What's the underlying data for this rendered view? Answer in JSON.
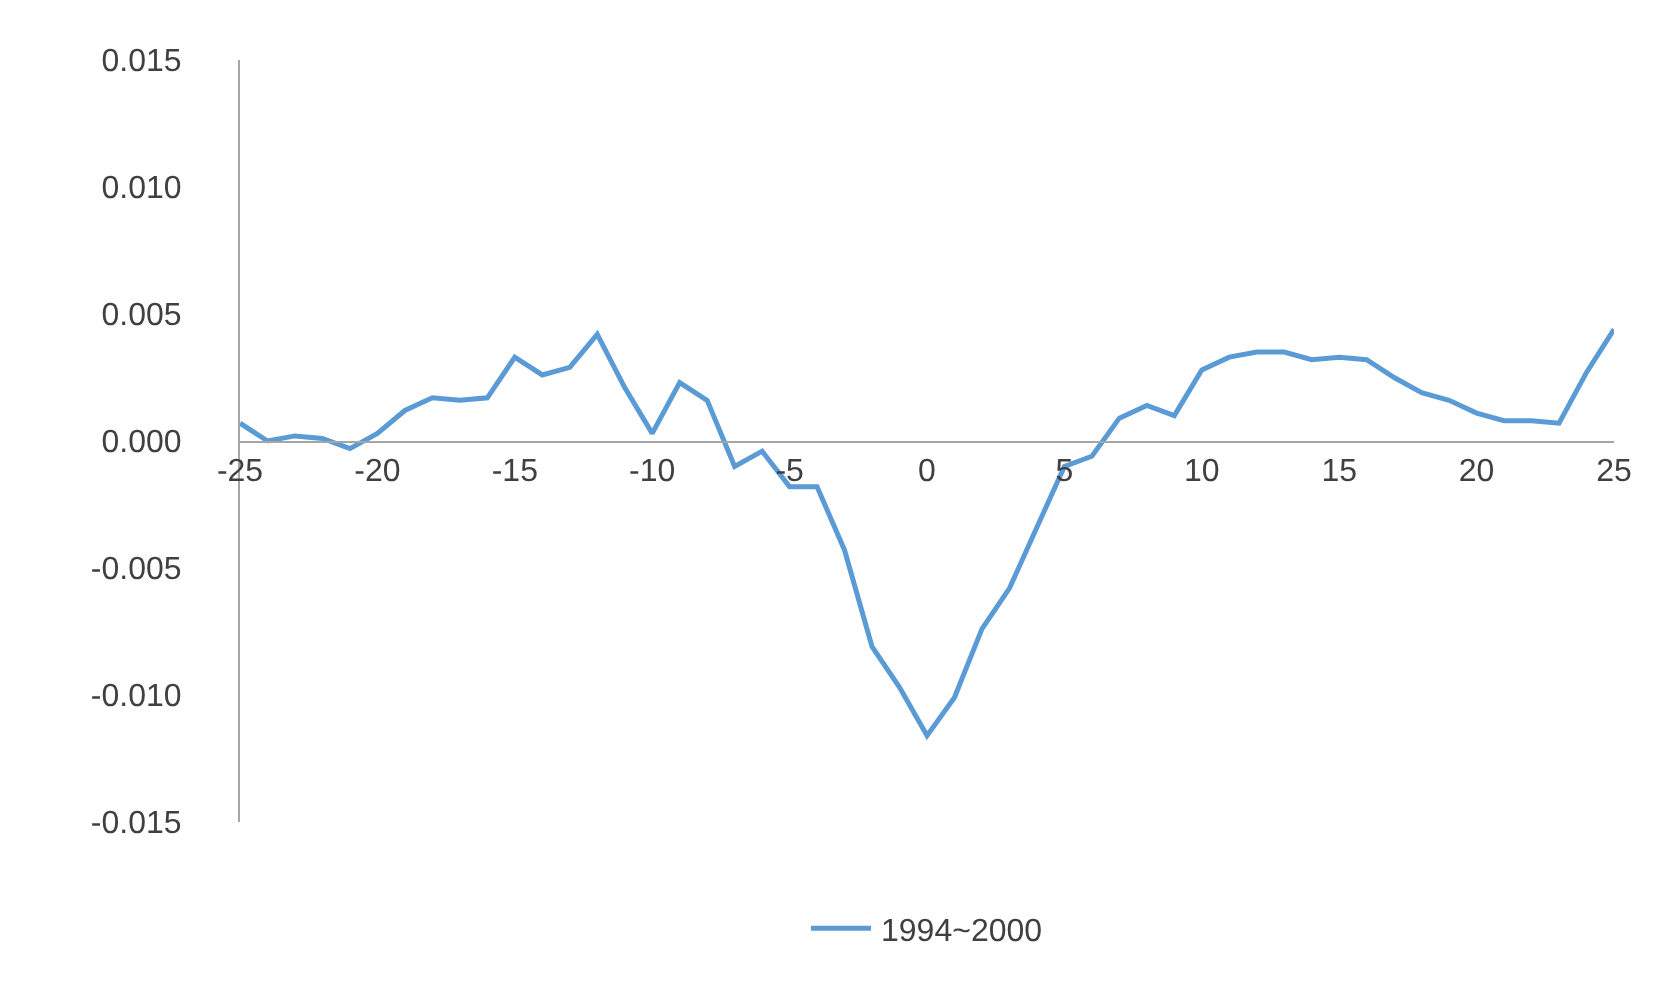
{
  "chart_data": {
    "type": "line",
    "x": [
      -25,
      -24,
      -23,
      -22,
      -21,
      -20,
      -19,
      -18,
      -17,
      -16,
      -15,
      -14,
      -13,
      -12,
      -11,
      -10,
      -9,
      -8,
      -7,
      -6,
      -5,
      -4,
      -3,
      -2,
      -1,
      0,
      1,
      2,
      3,
      4,
      5,
      6,
      7,
      8,
      9,
      10,
      11,
      12,
      13,
      14,
      15,
      16,
      17,
      18,
      19,
      20,
      21,
      22,
      23,
      24,
      25
    ],
    "series": [
      {
        "name": "1994~2000",
        "color": "#5b9bd5",
        "values": [
          0.0007,
          0.0,
          0.0002,
          0.0001,
          -0.0003,
          0.0003,
          0.0012,
          0.0017,
          0.0016,
          0.0017,
          0.0033,
          0.0026,
          0.0029,
          0.0042,
          0.0021,
          0.0003,
          0.0023,
          0.0016,
          -0.001,
          -0.0004,
          -0.0018,
          -0.0018,
          -0.0043,
          -0.0081,
          -0.0097,
          -0.0116,
          -0.0101,
          -0.0074,
          -0.0058,
          -0.0034,
          -0.001,
          -0.0006,
          0.0009,
          0.0014,
          0.001,
          0.0028,
          0.0033,
          0.0035,
          0.0035,
          0.0032,
          0.0033,
          0.0032,
          0.0025,
          0.0019,
          0.0016,
          0.0011,
          0.0008,
          0.0008,
          0.0007,
          0.0027,
          0.0044
        ]
      }
    ],
    "xlim": [
      -25,
      25
    ],
    "xticks": [
      -25,
      -20,
      -15,
      -10,
      -5,
      0,
      5,
      10,
      15,
      20,
      25
    ],
    "ylim": [
      -0.015,
      0.015
    ],
    "yticks": [
      {
        "value": -0.015,
        "label": "-0.015"
      },
      {
        "value": -0.01,
        "label": "-0.010"
      },
      {
        "value": -0.005,
        "label": "-0.005"
      },
      {
        "value": 0,
        "label": "0.000"
      },
      {
        "value": 0.005,
        "label": "0.005"
      },
      {
        "value": 0.01,
        "label": "0.010"
      },
      {
        "value": 0.015,
        "label": "0.015"
      }
    ],
    "grid": false,
    "legend": "bottom",
    "marker": "none",
    "line_style": "solid"
  }
}
